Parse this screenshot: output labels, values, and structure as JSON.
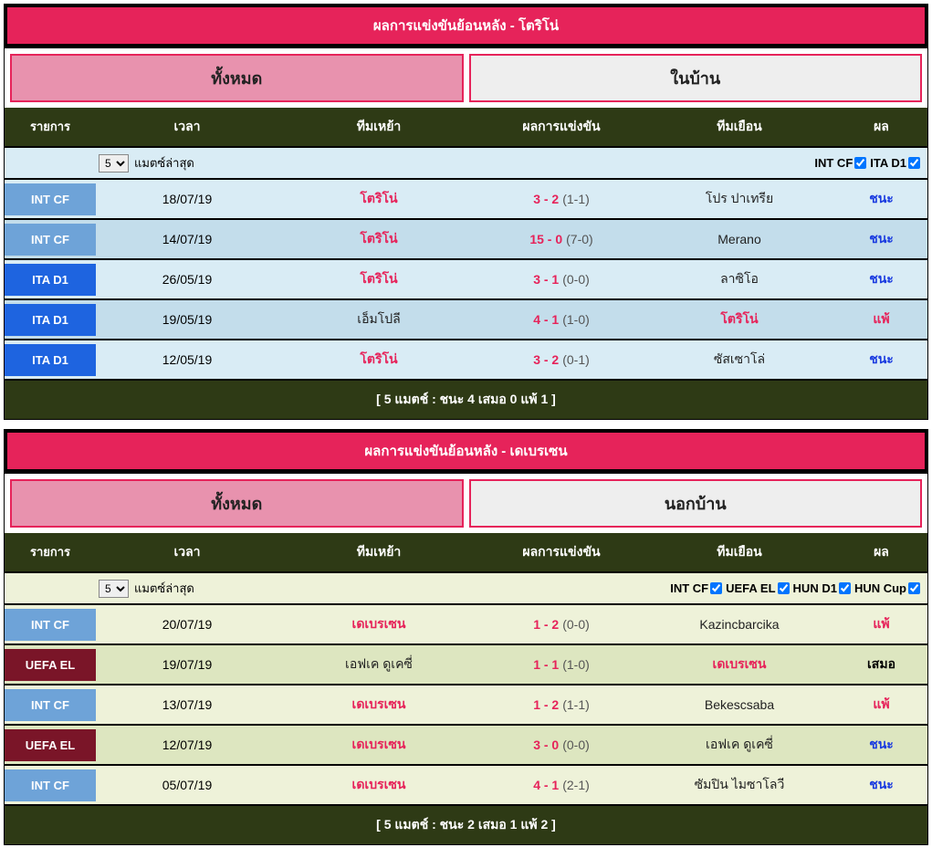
{
  "sections": [
    {
      "header": "ผลการแข่งขันย้อนหลัง - โตริโน่",
      "tab_active": "ทั้งหมด",
      "tab_inactive": "ในบ้าน",
      "theme": "blue",
      "columns": [
        "รายการ",
        "เวลา",
        "ทีมเหย้า",
        "ผลการแข่งขัน",
        "ทีมเยือน",
        "ผล"
      ],
      "filter_count": "5",
      "filter_label": "แมตซ์ล่าสุด",
      "leagues": [
        {
          "name": "INT CF",
          "checked": true
        },
        {
          "name": "ITA D1",
          "checked": true
        }
      ],
      "row_colors": {
        "odd": "#d9ecf5",
        "even": "#c3ddeb"
      },
      "league_colors": {
        "INT CF": "#6ea3d8",
        "ITA D1": "#1e64e0",
        "UEFA EL": "#7a1528"
      },
      "rows": [
        {
          "league": "INT CF",
          "date": "18/07/19",
          "home": "โตริโน่",
          "home_hl": true,
          "score": "3 - 2",
          "ht": "(1-1)",
          "away": "โปร ปาเทรีย",
          "away_hl": false,
          "result": "ชนะ",
          "rclass": "win"
        },
        {
          "league": "INT CF",
          "date": "14/07/19",
          "home": "โตริโน่",
          "home_hl": true,
          "score": "15 - 0",
          "ht": "(7-0)",
          "away": "Merano",
          "away_hl": false,
          "result": "ชนะ",
          "rclass": "win"
        },
        {
          "league": "ITA D1",
          "date": "26/05/19",
          "home": "โตริโน่",
          "home_hl": true,
          "score": "3 - 1",
          "ht": "(0-0)",
          "away": "ลาซิโอ",
          "away_hl": false,
          "result": "ชนะ",
          "rclass": "win"
        },
        {
          "league": "ITA D1",
          "date": "19/05/19",
          "home": "เอ็มโปลี",
          "home_hl": false,
          "score": "4 - 1",
          "ht": "(1-0)",
          "away": "โตริโน่",
          "away_hl": true,
          "result": "แพ้",
          "rclass": "lose"
        },
        {
          "league": "ITA D1",
          "date": "12/05/19",
          "home": "โตริโน่",
          "home_hl": true,
          "score": "3 - 2",
          "ht": "(0-1)",
          "away": "ซัสเซาโล่",
          "away_hl": false,
          "result": "ชนะ",
          "rclass": "win"
        }
      ],
      "summary": "[ 5 แมตช์ : ชนะ 4 เสมอ 0 แพ้ 1 ]"
    },
    {
      "header": "ผลการแข่งขันย้อนหลัง - เดเบรเซน",
      "tab_active": "ทั้งหมด",
      "tab_inactive": "นอกบ้าน",
      "theme": "green",
      "columns": [
        "รายการ",
        "เวลา",
        "ทีมเหย้า",
        "ผลการแข่งขัน",
        "ทีมเยือน",
        "ผล"
      ],
      "filter_count": "5",
      "filter_label": "แมตซ์ล่าสุด",
      "leagues": [
        {
          "name": "INT CF",
          "checked": true
        },
        {
          "name": "UEFA EL",
          "checked": true
        },
        {
          "name": "HUN D1",
          "checked": true
        },
        {
          "name": "HUN Cup",
          "checked": true
        }
      ],
      "row_colors": {
        "odd": "#eef2d9",
        "even": "#dde6c0"
      },
      "league_colors": {
        "INT CF": "#6ea3d8",
        "ITA D1": "#1e64e0",
        "UEFA EL": "#7a1528"
      },
      "rows": [
        {
          "league": "INT CF",
          "date": "20/07/19",
          "home": "เดเบรเซน",
          "home_hl": true,
          "score": "1 - 2",
          "ht": "(0-0)",
          "away": "Kazincbarcika",
          "away_hl": false,
          "result": "แพ้",
          "rclass": "lose"
        },
        {
          "league": "UEFA EL",
          "date": "19/07/19",
          "home": "เอฟเค ดูเคซี่",
          "home_hl": false,
          "score": "1 - 1",
          "ht": "(1-0)",
          "away": "เดเบรเซน",
          "away_hl": true,
          "result": "เสมอ",
          "rclass": "draw"
        },
        {
          "league": "INT CF",
          "date": "13/07/19",
          "home": "เดเบรเซน",
          "home_hl": true,
          "score": "1 - 2",
          "ht": "(1-1)",
          "away": "Bekescsaba",
          "away_hl": false,
          "result": "แพ้",
          "rclass": "lose"
        },
        {
          "league": "UEFA EL",
          "date": "12/07/19",
          "home": "เดเบรเซน",
          "home_hl": true,
          "score": "3 - 0",
          "ht": "(0-0)",
          "away": "เอฟเค ดูเคซี่",
          "away_hl": false,
          "result": "ชนะ",
          "rclass": "win"
        },
        {
          "league": "INT CF",
          "date": "05/07/19",
          "home": "เดเบรเซน",
          "home_hl": true,
          "score": "4 - 1",
          "ht": "(2-1)",
          "away": "ซัมปิน ไมซาโลวี",
          "away_hl": false,
          "result": "ชนะ",
          "rclass": "win"
        }
      ],
      "summary": "[ 5 แมตช์ : ชนะ 2 เสมอ 1 แพ้ 2 ]"
    }
  ]
}
